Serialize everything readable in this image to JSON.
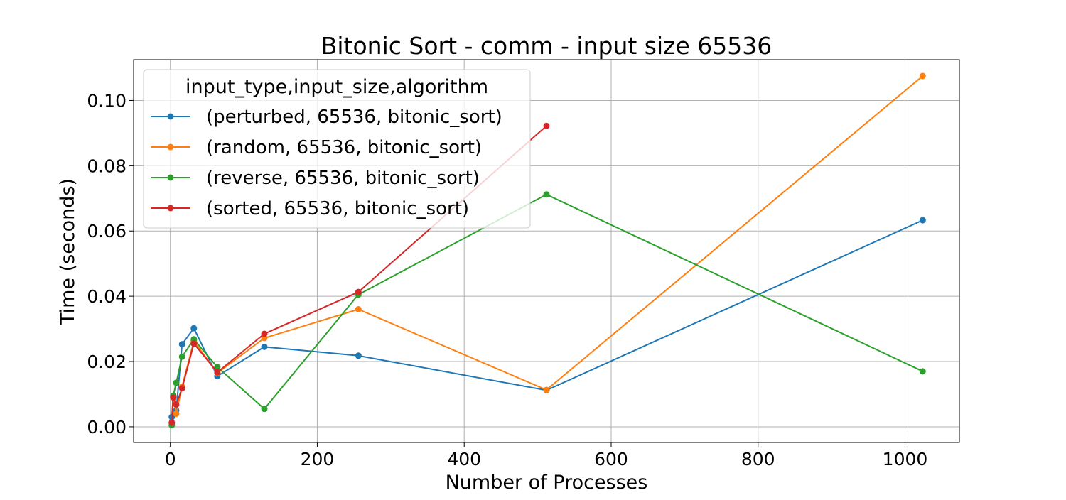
{
  "chart_data": {
    "type": "line",
    "title": "Bitonic Sort - comm - input size 65536",
    "xlabel": "Number of Processes",
    "ylabel": "Time (seconds)",
    "xlim": [
      -50,
      1074
    ],
    "ylim": [
      -0.0048,
      0.1125
    ],
    "xticks": [
      0,
      200,
      400,
      600,
      800,
      1000
    ],
    "xtick_labels": [
      "0",
      "200",
      "400",
      "600",
      "800",
      "1000"
    ],
    "yticks": [
      0.0,
      0.02,
      0.04,
      0.06,
      0.08,
      0.1
    ],
    "ytick_labels": [
      "0.00",
      "0.02",
      "0.04",
      "0.06",
      "0.08",
      "0.10"
    ],
    "grid": true,
    "legend": {
      "title": "input_type,input_size,algorithm",
      "placement": "upper-left"
    },
    "series": [
      {
        "name": "(perturbed, 65536, bitonic_sort)",
        "color": "#1f77b4",
        "x": [
          2,
          4,
          8,
          16,
          32,
          64,
          128,
          256,
          512,
          1024
        ],
        "y": [
          0.003,
          0.0095,
          0.005,
          0.0253,
          0.0302,
          0.0155,
          0.0245,
          0.0218,
          0.0112,
          0.0633
        ]
      },
      {
        "name": "(random, 65536, bitonic_sort)",
        "color": "#ff7f0e",
        "x": [
          2,
          4,
          8,
          16,
          32,
          64,
          128,
          256,
          512,
          1024
        ],
        "y": [
          0.0012,
          0.0092,
          0.004,
          0.0123,
          0.0263,
          0.0165,
          0.0272,
          0.036,
          0.0113,
          0.1075
        ]
      },
      {
        "name": "(reverse, 65536, bitonic_sort)",
        "color": "#2ca02c",
        "x": [
          2,
          4,
          8,
          16,
          32,
          64,
          128,
          256,
          512,
          1024
        ],
        "y": [
          0.0005,
          0.0095,
          0.0135,
          0.0215,
          0.0268,
          0.0183,
          0.0055,
          0.0405,
          0.0712,
          0.017
        ]
      },
      {
        "name": "(sorted, 65536, bitonic_sort)",
        "color": "#d62728",
        "x": [
          2,
          4,
          8,
          16,
          32,
          64,
          128,
          256,
          512
        ],
        "y": [
          0.0013,
          0.009,
          0.0068,
          0.0118,
          0.0255,
          0.0167,
          0.0285,
          0.0413,
          0.0922
        ]
      }
    ]
  }
}
